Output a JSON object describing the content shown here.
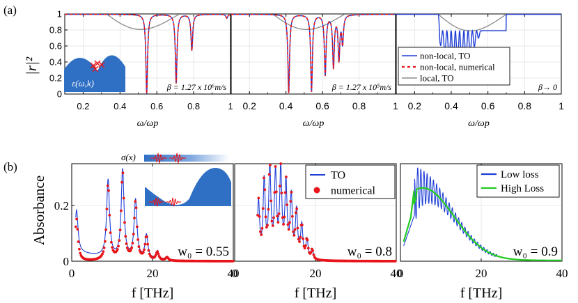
{
  "figure": {
    "panel_a_label": "(a)",
    "panel_b_label": "(b)"
  },
  "colors": {
    "blue": "#1f3fd6",
    "red": "#e8151a",
    "gray": "#8c8c8c",
    "green": "#22cc22",
    "fill": "#2f6fc4"
  },
  "chart_data": [
    {
      "id": "a1",
      "type": "line",
      "ylabel": "|r|²",
      "xlabel": "ω/ωp",
      "xlim": [
        0.1,
        1.0
      ],
      "ylim": [
        0.0,
        1.0
      ],
      "xticks": [
        "0.2",
        "0.4",
        "0.6",
        "0.8",
        "1"
      ],
      "yticks": [
        "0",
        "0.2",
        "0.4",
        "0.6",
        "0.8",
        "1"
      ],
      "annotation": "β = 1.27 x 10⁶m/s",
      "inset_label": "ε(ω,k)",
      "gray_dip": {
        "start": 0.33,
        "end": 0.72,
        "min": 0.78
      },
      "dips": [
        {
          "x": 0.545,
          "depth": 0.99
        },
        {
          "x": 0.705,
          "depth": 0.86
        },
        {
          "x": 0.79,
          "depth": 0.45
        },
        {
          "x": 0.98,
          "depth": 0.05
        }
      ],
      "series": [
        {
          "name": "non-local, TO",
          "style": "solid",
          "color": "blue"
        },
        {
          "name": "non-local, numerical",
          "style": "dash",
          "color": "red"
        },
        {
          "name": "local, TO",
          "style": "solid",
          "color": "gray"
        }
      ]
    },
    {
      "id": "a2",
      "type": "line",
      "xlabel": "ω/ωp",
      "xlim": [
        0.1,
        1.0
      ],
      "ylim": [
        0.0,
        1.0
      ],
      "xticks": [
        "0.2",
        "0.4",
        "0.6",
        "0.8",
        "1"
      ],
      "annotation": "β = 1.27 x 10⁵m/s",
      "gray_dip": {
        "start": 0.33,
        "end": 0.72,
        "min": 0.78
      },
      "dips": [
        {
          "x": 0.415,
          "depth": 0.98
        },
        {
          "x": 0.54,
          "depth": 0.96
        },
        {
          "x": 0.615,
          "depth": 0.75
        },
        {
          "x": 0.66,
          "depth": 0.65
        },
        {
          "x": 0.69,
          "depth": 0.55
        },
        {
          "x": 0.71,
          "depth": 0.35
        }
      ]
    },
    {
      "id": "a3",
      "type": "line",
      "xlabel": "ω/ωp",
      "xlim": [
        0.1,
        1.0
      ],
      "ylim": [
        0.0,
        1.0
      ],
      "xticks": [
        "0.2",
        "0.4",
        "0.6",
        "0.8",
        "1"
      ],
      "annotation": "β→ 0",
      "oscillation": {
        "start": 0.33,
        "end": 0.7,
        "count": 16,
        "baseline": 0.76
      },
      "legend": [
        {
          "label": "non-local, TO",
          "style": "solid",
          "color": "blue"
        },
        {
          "label": "non-local, numerical",
          "style": "dash",
          "color": "red"
        },
        {
          "label": "local, TO",
          "style": "solid",
          "color": "gray"
        }
      ]
    },
    {
      "id": "b1",
      "type": "line",
      "ylabel": "Absorbance",
      "xlabel": "f [THz]",
      "xlim": [
        0,
        40
      ],
      "ylim": [
        0,
        0.35
      ],
      "xticks": [
        "0",
        "20",
        "40"
      ],
      "yticks": [
        "0",
        "0.2"
      ],
      "annotation": "w₀ = 0.55",
      "inset_label": "σ(x)",
      "peaks": [
        {
          "f": 1.2,
          "a": 0.15
        },
        {
          "f": 9.0,
          "a": 0.275
        },
        {
          "f": 12.6,
          "a": 0.315
        },
        {
          "f": 15.8,
          "a": 0.21
        },
        {
          "f": 18.5,
          "a": 0.085
        },
        {
          "f": 21.2,
          "a": 0.03
        },
        {
          "f": 23.6,
          "a": 0.012
        }
      ]
    },
    {
      "id": "b2",
      "type": "line",
      "xlabel": "f [THz]",
      "xlim": [
        0,
        40
      ],
      "ylim": [
        0,
        0.35
      ],
      "xticks": [
        "0",
        "20",
        "40"
      ],
      "annotation": "w₀ = 0.8",
      "peaks": [
        {
          "f": 5.9,
          "a": 0.205
        },
        {
          "f": 7.3,
          "a": 0.275
        },
        {
          "f": 8.7,
          "a": 0.325
        },
        {
          "f": 10.1,
          "a": 0.295
        },
        {
          "f": 11.4,
          "a": 0.31
        },
        {
          "f": 12.7,
          "a": 0.265
        },
        {
          "f": 14.0,
          "a": 0.22
        },
        {
          "f": 15.3,
          "a": 0.17
        },
        {
          "f": 16.6,
          "a": 0.12
        },
        {
          "f": 17.9,
          "a": 0.07
        },
        {
          "f": 19.2,
          "a": 0.035
        }
      ],
      "legend": [
        {
          "label": "TO",
          "style": "solid",
          "color": "blue"
        },
        {
          "label": "numerical",
          "style": "dot",
          "color": "red"
        }
      ]
    },
    {
      "id": "b3",
      "type": "line",
      "xlabel": "f [THz]",
      "xlim": [
        0,
        40
      ],
      "ylim": [
        0,
        0.35
      ],
      "xticks": [
        "0",
        "20",
        "40"
      ],
      "annotation": "w₀ = 0.9",
      "oscillation": {
        "start": 3.5,
        "end": 16,
        "count": 16,
        "top": 0.33
      },
      "legend": [
        {
          "label": "Low loss",
          "style": "solid",
          "color": "blue"
        },
        {
          "label": "High Loss",
          "style": "solid",
          "color": "green"
        }
      ]
    }
  ]
}
